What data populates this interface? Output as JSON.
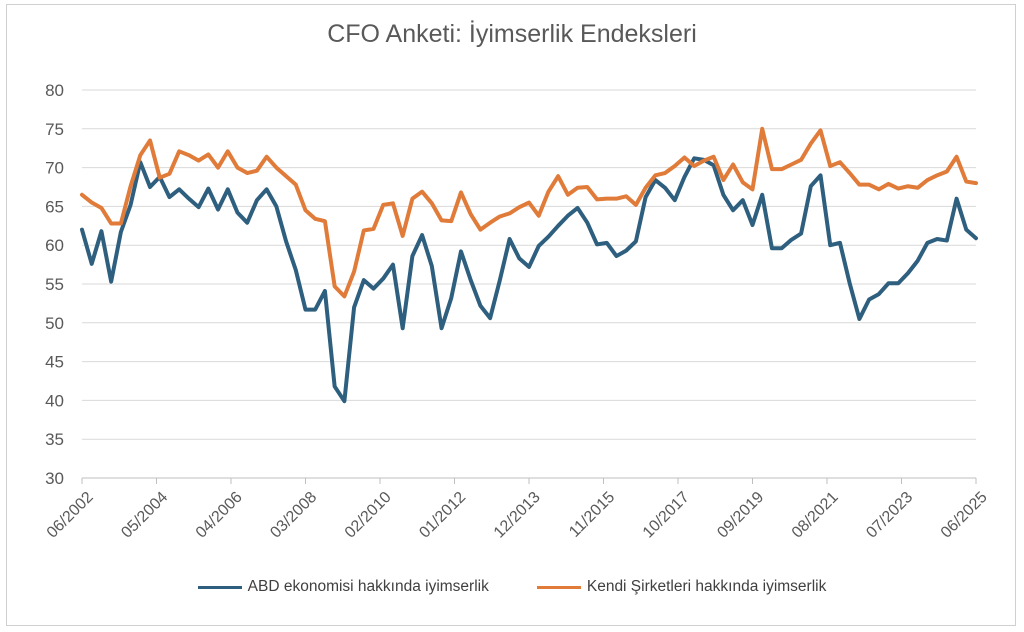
{
  "chart_data": {
    "type": "line",
    "title": "CFO Anketi: İyimserlik Endeksleri",
    "xlabel": "",
    "ylabel": "",
    "ylim": [
      30,
      80
    ],
    "yticks": [
      30,
      35,
      40,
      45,
      50,
      55,
      60,
      65,
      70,
      75,
      80
    ],
    "x_start": "06/2002",
    "x_end": "06/2025",
    "xticks": [
      "06/2002",
      "05/2004",
      "04/2006",
      "03/2008",
      "02/2010",
      "01/2012",
      "12/2013",
      "11/2015",
      "10/2017",
      "09/2019",
      "08/2021",
      "07/2023",
      "06/2025"
    ],
    "grid": true,
    "legend_position": "bottom",
    "series": [
      {
        "name": "ABD ekonomisi hakkında iyimserlik",
        "color": "#2e5f7e",
        "values": [
          62.0,
          57.6,
          61.8,
          55.3,
          61.7,
          65.2,
          70.7,
          67.5,
          68.8,
          66.2,
          67.2,
          66.0,
          64.9,
          67.3,
          64.6,
          67.2,
          64.2,
          62.9,
          65.8,
          67.2,
          65.0,
          60.5,
          56.8,
          51.7,
          51.7,
          54.1,
          41.8,
          39.9,
          52.0,
          55.5,
          54.4,
          55.7,
          57.5,
          49.3,
          58.6,
          61.3,
          57.3,
          49.3,
          53.2,
          59.2,
          55.5,
          52.2,
          50.6,
          55.5,
          60.8,
          58.3,
          57.2,
          59.9,
          61.1,
          62.5,
          63.8,
          64.8,
          62.9,
          60.1,
          60.3,
          58.6,
          59.3,
          60.5,
          66.2,
          68.4,
          67.4,
          65.8,
          68.8,
          71.2,
          71.0,
          70.3,
          66.5,
          64.5,
          65.8,
          62.6,
          66.5,
          59.6,
          59.6,
          60.7,
          61.5,
          67.6,
          69.0,
          60.0,
          60.3,
          55.1,
          50.5,
          53.0,
          53.7,
          55.1,
          55.1,
          56.4,
          58.0,
          60.3,
          60.8,
          60.6,
          66.0,
          62.0,
          60.9
        ]
      },
      {
        "name": "Kendi Şirketleri hakkında iyimserlik",
        "color": "#e07b39",
        "values": [
          66.5,
          65.5,
          64.8,
          62.8,
          62.8,
          67.6,
          71.6,
          73.5,
          68.7,
          69.2,
          72.1,
          71.6,
          70.9,
          71.7,
          70.0,
          72.1,
          70.0,
          69.3,
          69.6,
          71.4,
          70.0,
          68.9,
          67.8,
          64.5,
          63.4,
          63.1,
          54.7,
          53.4,
          56.6,
          61.9,
          62.1,
          65.2,
          65.4,
          61.2,
          66.0,
          66.9,
          65.4,
          63.2,
          63.1,
          66.8,
          64.0,
          62.0,
          62.9,
          63.7,
          64.1,
          64.9,
          65.5,
          63.8,
          66.9,
          68.9,
          66.5,
          67.4,
          67.5,
          65.9,
          66.0,
          66.0,
          66.3,
          65.2,
          67.4,
          69.0,
          69.3,
          70.2,
          71.3,
          70.2,
          70.9,
          71.4,
          68.4,
          70.4,
          68.1,
          67.2,
          75.0,
          69.8,
          69.8,
          70.4,
          71.0,
          73.1,
          74.8,
          70.2,
          70.7,
          69.3,
          67.8,
          67.8,
          67.2,
          67.9,
          67.3,
          67.6,
          67.4,
          68.4,
          69.0,
          69.5,
          71.4,
          68.2,
          68.0
        ]
      }
    ]
  }
}
